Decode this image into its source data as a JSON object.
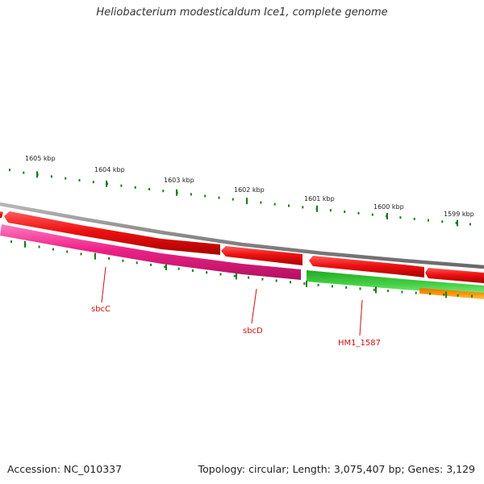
{
  "title": "Heliobacterium modesticaldum Ice1, complete genome",
  "footer": {
    "accession": "Accession: NC_010337",
    "summary": "Topology: circular; Length: 3,075,407 bp; Genes: 3,129"
  },
  "scale_labels": [
    "1605 kbp",
    "1604 kbp",
    "1603 kbp",
    "1602 kbp",
    "1601 kbp",
    "1600 kbp",
    "1599 kbp"
  ],
  "gene_labels": [
    "sbcC",
    "sbcD",
    "HM1_1587"
  ],
  "colors": {
    "backbone": "#8a8888",
    "forward_gene": "#ee1111",
    "reverse_magenta": "#ee2288",
    "reverse_green": "#33cc33",
    "reverse_orange": "#ff9900",
    "tick": "#1a7a1a",
    "gene_label": "#cc1111"
  }
}
